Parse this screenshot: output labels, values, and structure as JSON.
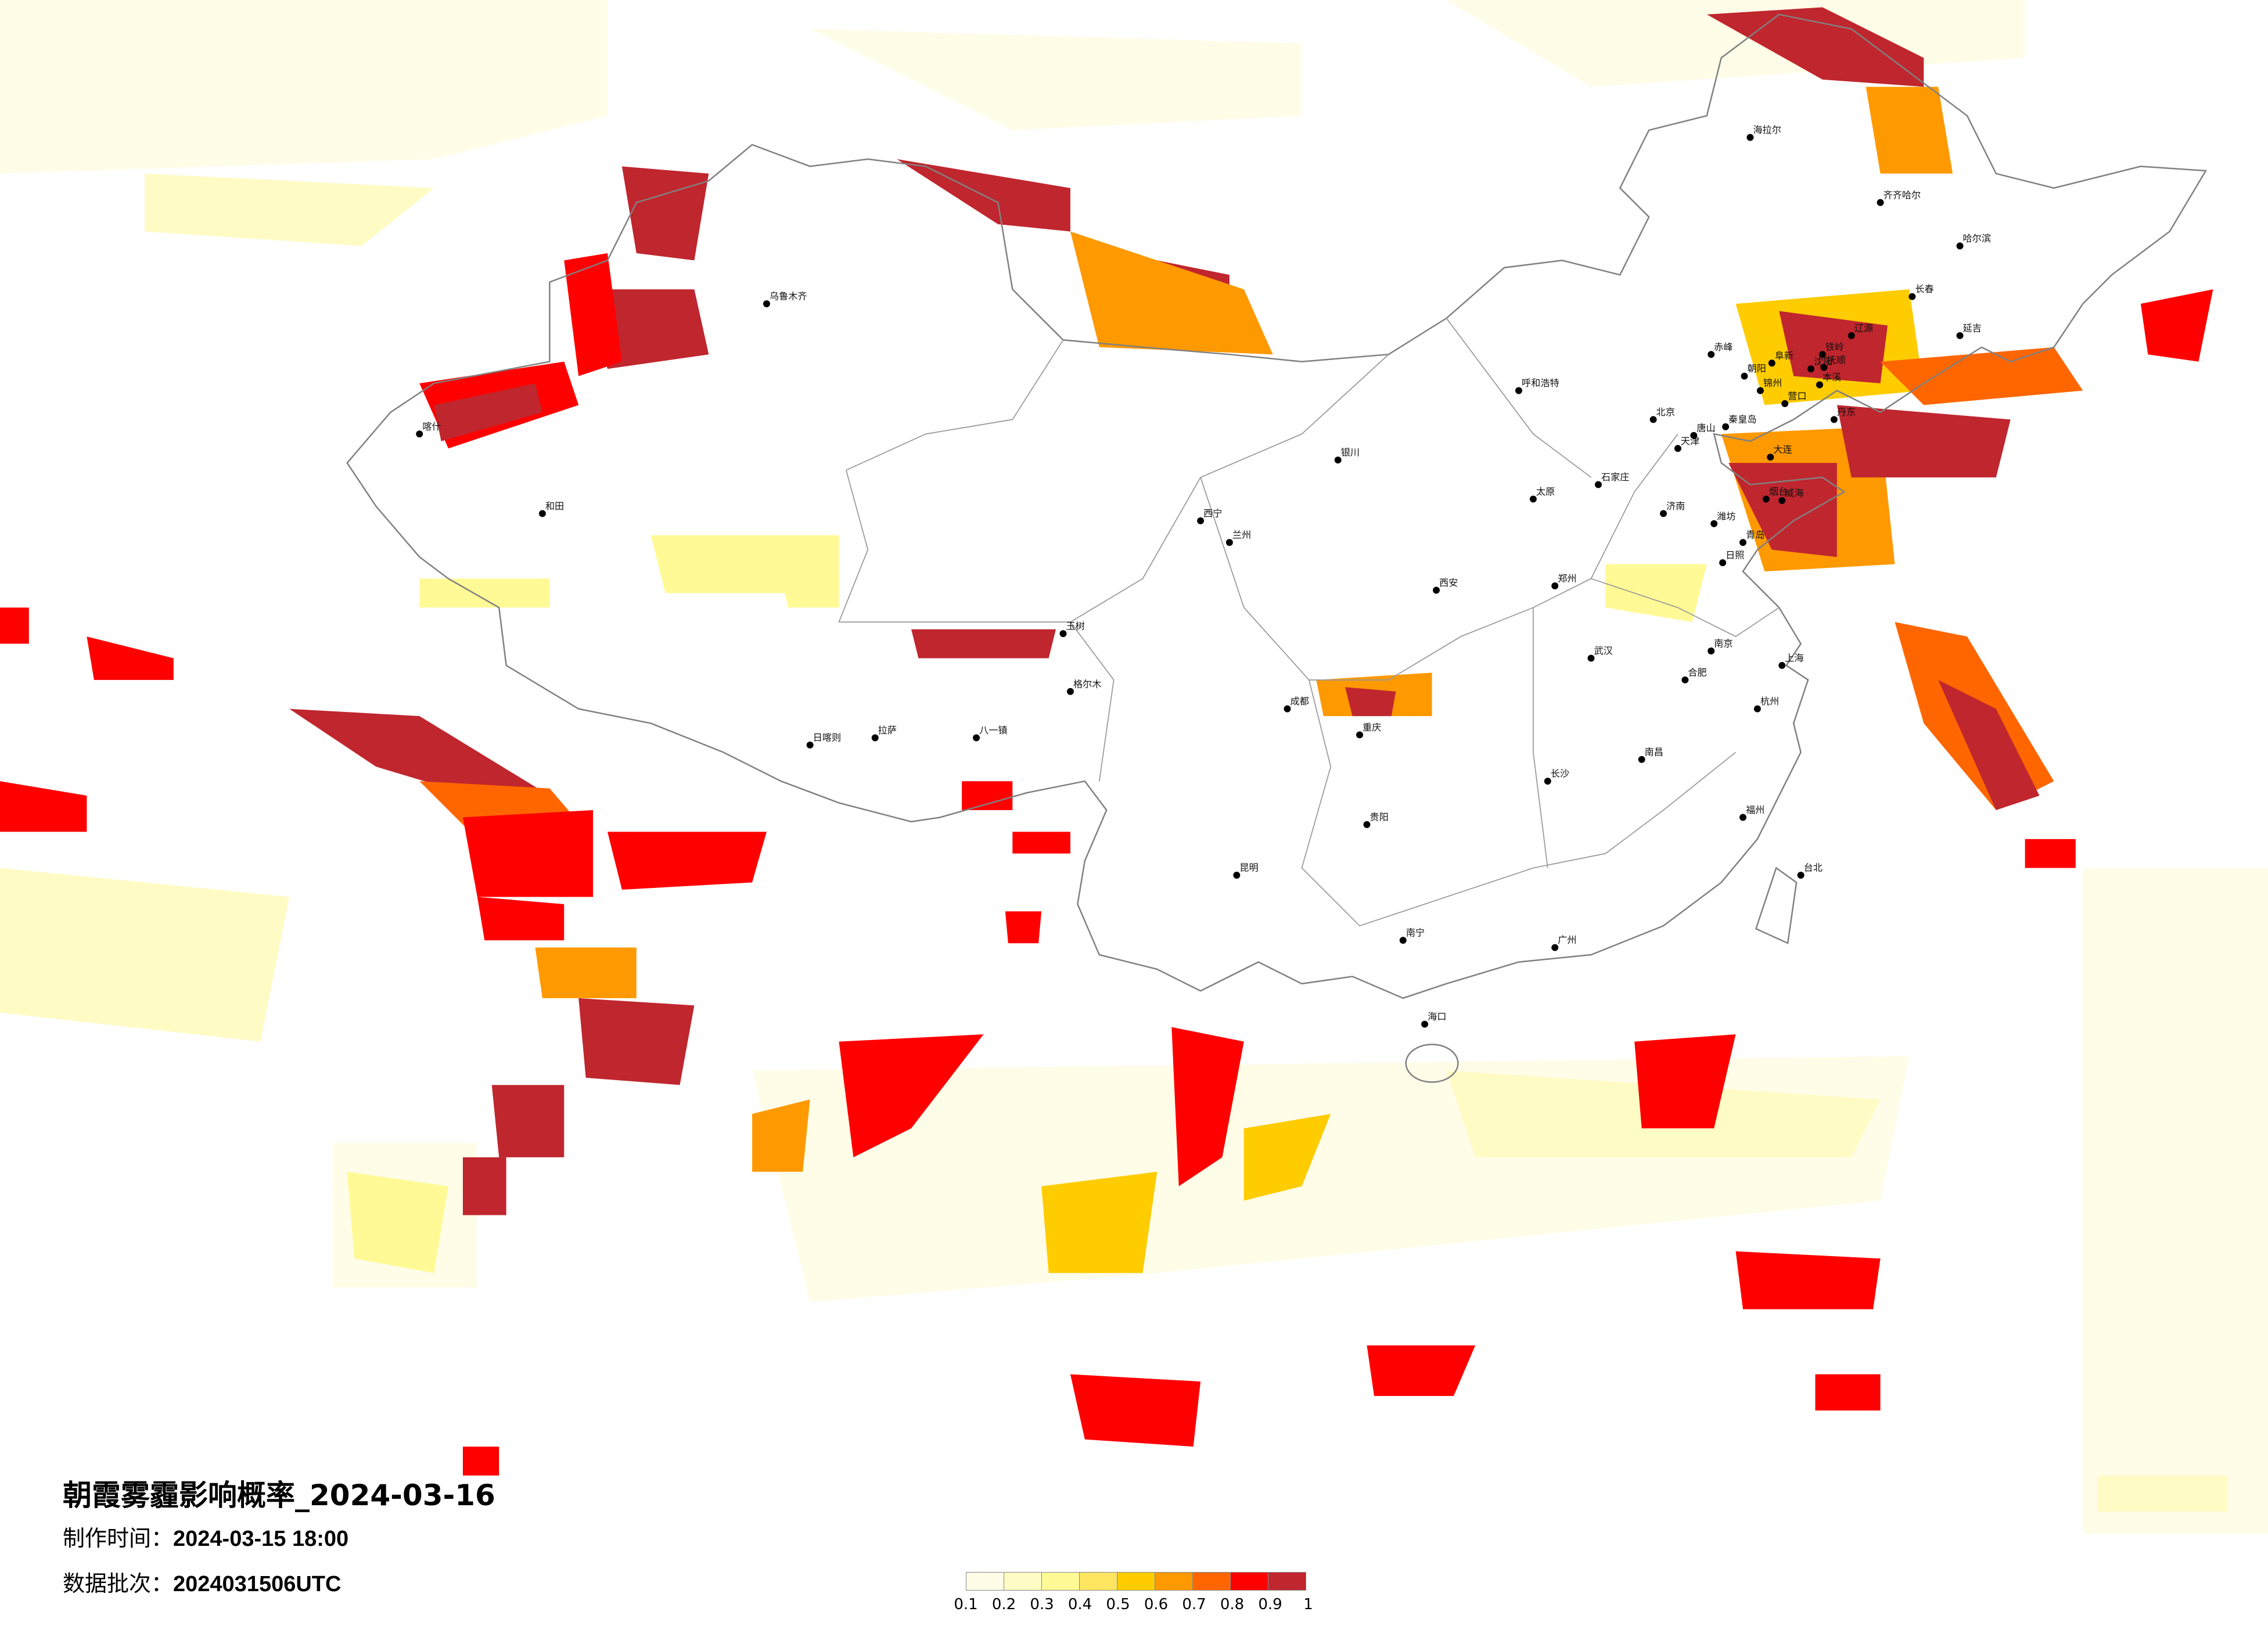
{
  "title": "朝霞雾霾影响概率_2024-03-16",
  "production_time": {
    "label": "制作时间：",
    "value": "2024-03-15 18:00"
  },
  "data_batch": {
    "label": "数据批次：",
    "value": "2024031506UTC"
  },
  "legend": {
    "ticks": [
      "0.1",
      "0.2",
      "0.3",
      "0.4",
      "0.5",
      "0.6",
      "0.7",
      "0.8",
      "0.9",
      "1"
    ],
    "colors": [
      "#fffde8",
      "#fffbc4",
      "#fffa96",
      "#ffe560",
      "#ffcc00",
      "#ff9900",
      "#ff6600",
      "#ff0000",
      "#c0262e"
    ]
  },
  "map": {
    "border_color": "#808080",
    "city_dot_color": "#000000",
    "cities": [
      "北京",
      "天津",
      "上海",
      "广州",
      "重庆",
      "成都",
      "武汉",
      "西安",
      "拉萨",
      "乌鲁木齐",
      "哈尔滨",
      "长春",
      "沈阳",
      "大连",
      "丹东",
      "青岛",
      "烟台",
      "威海",
      "日照",
      "唐山",
      "秦皇岛",
      "锦州",
      "营口",
      "赤峰",
      "朝阳",
      "阜新",
      "铁岭",
      "抚顺",
      "本溪",
      "延吉",
      "辽源",
      "潍坊",
      "呼和浩特",
      "兰州",
      "昆明",
      "贵阳",
      "南宁",
      "海口",
      "台北",
      "福州",
      "杭州",
      "南京",
      "郑州",
      "济南",
      "石家庄",
      "太原",
      "长沙",
      "南昌",
      "合肥",
      "西宁",
      "银川",
      "喀什",
      "齐齐哈尔",
      "和田",
      "八一镇",
      "日喀则",
      "格尔木",
      "玉树",
      "海拉尔"
    ]
  }
}
